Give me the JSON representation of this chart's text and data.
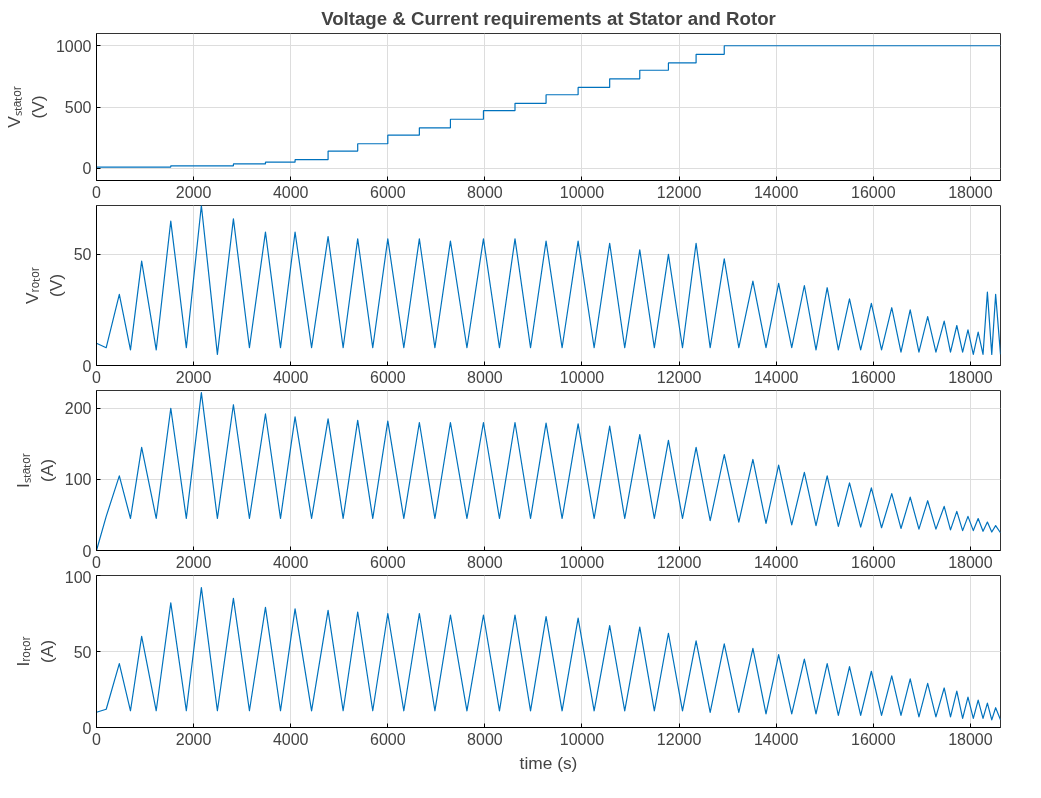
{
  "chart_data": [
    {
      "type": "step",
      "title": "Voltage & Current requirements at Stator and Rotor",
      "ylabel": "Vₛₜₐₜₒᵣ (V)",
      "xlim": [
        0,
        18620
      ],
      "xticks": [
        0,
        2000,
        4000,
        6000,
        8000,
        10000,
        12000,
        14000,
        16000,
        18000
      ],
      "ylim": [
        -100,
        1100
      ],
      "yticks": [
        0,
        500,
        1000
      ],
      "grid": true,
      "x": [
        0,
        1530,
        2820,
        3480,
        4090,
        4770,
        5380,
        6000,
        6650,
        7290,
        7970,
        8620,
        9260,
        9920,
        10570,
        11190,
        11780,
        12350,
        12930,
        18620
      ],
      "series": [
        {
          "color": "#0072bd",
          "values": [
            10,
            20,
            35,
            50,
            70,
            140,
            200,
            270,
            330,
            400,
            470,
            530,
            600,
            660,
            730,
            800,
            860,
            930,
            1000,
            1000
          ]
        }
      ]
    },
    {
      "type": "line",
      "ylabel": "Vᵣₒₜₒᵣ (V)",
      "xlim": [
        0,
        18620
      ],
      "xticks": [
        0,
        2000,
        4000,
        6000,
        8000,
        10000,
        12000,
        14000,
        16000,
        18000
      ],
      "ylim": [
        0,
        72
      ],
      "yticks": [
        0,
        50
      ],
      "grid": true,
      "x": [
        0,
        200,
        470,
        700,
        930,
        1230,
        1530,
        1850,
        2160,
        2490,
        2820,
        3150,
        3480,
        3790,
        4090,
        4430,
        4770,
        5080,
        5380,
        5690,
        6000,
        6330,
        6650,
        6970,
        7290,
        7630,
        7970,
        8300,
        8620,
        8940,
        9260,
        9590,
        9920,
        10250,
        10570,
        10880,
        11190,
        11490,
        11780,
        12070,
        12350,
        12640,
        12930,
        13230,
        13520,
        13790,
        14050,
        14320,
        14580,
        14820,
        15050,
        15280,
        15510,
        15740,
        15960,
        16170,
        16380,
        16570,
        16760,
        16940,
        17120,
        17290,
        17460,
        17590,
        17720,
        17840,
        17950,
        18060,
        18160,
        18260,
        18350,
        18440,
        18520,
        18620
      ],
      "series": [
        {
          "color": "#0072bd",
          "values": [
            10,
            8,
            32,
            7,
            47,
            7,
            65,
            8,
            72,
            5,
            66,
            8,
            60,
            8,
            60,
            8,
            58,
            8,
            57,
            8,
            57,
            8,
            57,
            8,
            56,
            8,
            57,
            8,
            57,
            8,
            56,
            8,
            56,
            8,
            55,
            8,
            52,
            8,
            50,
            8,
            55,
            8,
            48,
            8,
            38,
            8,
            37,
            8,
            36,
            7,
            35,
            7,
            30,
            7,
            28,
            7,
            26,
            6,
            25,
            6,
            22,
            6,
            20,
            6,
            18,
            6,
            16,
            5,
            15,
            5,
            33,
            5,
            32,
            5
          ]
        }
      ]
    },
    {
      "type": "line",
      "ylabel": "Iₛₜₐₜₒᵣ (A)",
      "xlim": [
        0,
        18620
      ],
      "xticks": [
        0,
        2000,
        4000,
        6000,
        8000,
        10000,
        12000,
        14000,
        16000,
        18000
      ],
      "ylim": [
        0,
        225
      ],
      "yticks": [
        0,
        100,
        200
      ],
      "grid": true,
      "x": [
        0,
        200,
        470,
        700,
        930,
        1230,
        1530,
        1850,
        2160,
        2490,
        2820,
        3150,
        3480,
        3790,
        4090,
        4430,
        4770,
        5080,
        5380,
        5690,
        6000,
        6330,
        6650,
        6970,
        7290,
        7630,
        7970,
        8300,
        8620,
        8940,
        9260,
        9590,
        9920,
        10250,
        10570,
        10880,
        11190,
        11490,
        11780,
        12070,
        12350,
        12640,
        12930,
        13230,
        13520,
        13790,
        14050,
        14320,
        14580,
        14820,
        15050,
        15280,
        15510,
        15740,
        15960,
        16170,
        16380,
        16570,
        16760,
        16940,
        17120,
        17290,
        17460,
        17590,
        17720,
        17840,
        17950,
        18060,
        18160,
        18260,
        18350,
        18440,
        18520,
        18620
      ],
      "series": [
        {
          "color": "#0072bd",
          "values": [
            0,
            48,
            105,
            45,
            145,
            45,
            200,
            45,
            222,
            45,
            205,
            45,
            192,
            45,
            188,
            45,
            185,
            45,
            183,
            45,
            182,
            45,
            180,
            45,
            180,
            45,
            180,
            45,
            180,
            45,
            179,
            45,
            178,
            45,
            175,
            45,
            163,
            45,
            155,
            45,
            145,
            42,
            135,
            40,
            128,
            38,
            120,
            36,
            110,
            35,
            105,
            34,
            95,
            33,
            88,
            32,
            80,
            31,
            75,
            30,
            70,
            30,
            62,
            29,
            55,
            28,
            48,
            28,
            45,
            27,
            40,
            26,
            35,
            25
          ]
        }
      ]
    },
    {
      "type": "line",
      "xlabel": "time (s)",
      "ylabel": "Iᵣₒₜₒᵣ (A)",
      "xlim": [
        0,
        18620
      ],
      "xticks": [
        0,
        2000,
        4000,
        6000,
        8000,
        10000,
        12000,
        14000,
        16000,
        18000
      ],
      "ylim": [
        0,
        100
      ],
      "yticks": [
        0,
        50,
        100
      ],
      "grid": true,
      "x": [
        0,
        200,
        470,
        700,
        930,
        1230,
        1530,
        1850,
        2160,
        2490,
        2820,
        3150,
        3480,
        3790,
        4090,
        4430,
        4770,
        5080,
        5380,
        5690,
        6000,
        6330,
        6650,
        6970,
        7290,
        7630,
        7970,
        8300,
        8620,
        8940,
        9260,
        9590,
        9920,
        10250,
        10570,
        10880,
        11190,
        11490,
        11780,
        12070,
        12350,
        12640,
        12930,
        13230,
        13520,
        13790,
        14050,
        14320,
        14580,
        14820,
        15050,
        15280,
        15510,
        15740,
        15960,
        16170,
        16380,
        16570,
        16760,
        16940,
        17120,
        17290,
        17460,
        17590,
        17720,
        17840,
        17950,
        18060,
        18160,
        18260,
        18350,
        18440,
        18520,
        18620
      ],
      "series": [
        {
          "color": "#0072bd",
          "values": [
            10,
            12,
            42,
            11,
            60,
            11,
            82,
            11,
            92,
            11,
            85,
            11,
            79,
            11,
            78,
            11,
            77,
            11,
            76,
            11,
            75,
            11,
            75,
            11,
            74,
            11,
            74,
            11,
            74,
            11,
            73,
            11,
            72,
            11,
            67,
            11,
            66,
            11,
            62,
            11,
            57,
            10,
            55,
            10,
            52,
            9,
            48,
            9,
            45,
            9,
            42,
            8,
            40,
            8,
            37,
            8,
            34,
            8,
            32,
            7,
            29,
            7,
            26,
            7,
            24,
            6,
            20,
            6,
            18,
            6,
            16,
            5,
            13,
            5
          ]
        }
      ]
    }
  ]
}
